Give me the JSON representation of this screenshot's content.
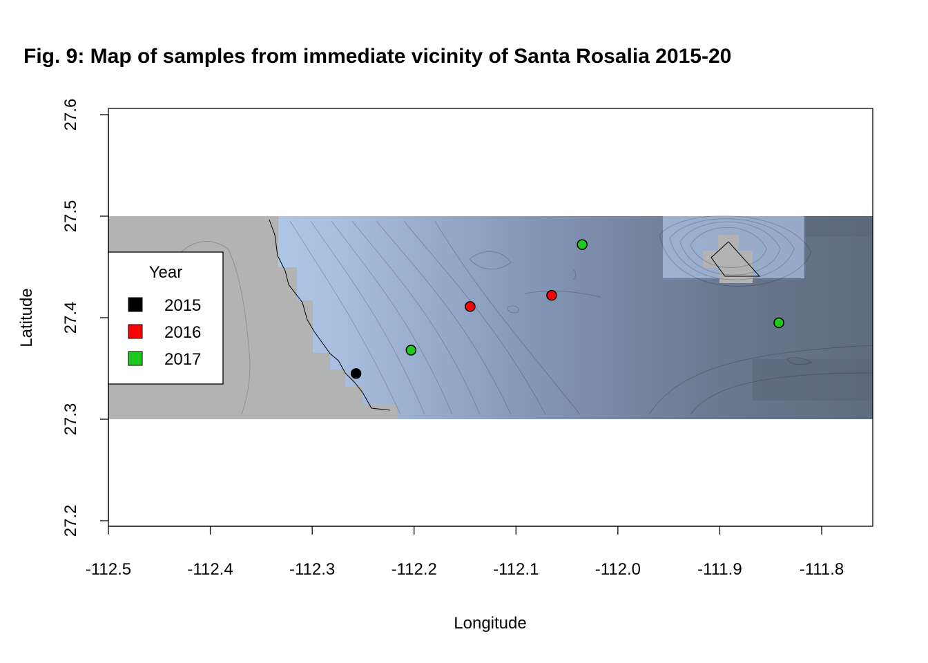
{
  "chart_data": {
    "type": "scatter",
    "title": "Fig. 9: Map of samples from immediate vicinity of Santa Rosalia 2015-20",
    "xlabel": "Longitude",
    "ylabel": "Latitude",
    "xlim": [
      -112.5,
      -111.75
    ],
    "ylim": [
      27.19,
      27.61
    ],
    "x_ticks": [
      -112.5,
      -112.4,
      -112.3,
      -112.2,
      -112.1,
      -112.0,
      -111.9,
      -111.8
    ],
    "x_tick_labels": [
      "-112.5",
      "-112.4",
      "-112.3",
      "-112.2",
      "-112.1",
      "-112.0",
      "-111.9",
      "-111.8"
    ],
    "y_ticks": [
      27.2,
      27.3,
      27.4,
      27.5,
      27.6
    ],
    "y_tick_labels": [
      "27.2",
      "27.3",
      "27.4",
      "27.5",
      "27.6"
    ],
    "grid": false,
    "background_raster": {
      "description": "bathymetry raster with contour lines; land shown in grey",
      "extent_x": [
        -112.5,
        -111.75
      ],
      "extent_y": [
        27.3,
        27.5
      ],
      "land_color": "#b3b3b3",
      "shallow_color": "#bcd6fb",
      "deep_color": "#5f6b7f"
    },
    "legend": {
      "title": "Year",
      "position": "left",
      "entries": [
        {
          "label": "2015",
          "color": "#000000"
        },
        {
          "label": "2016",
          "color": "#ff0000"
        },
        {
          "label": "2017",
          "color": "#1ec81e"
        }
      ]
    },
    "series": [
      {
        "name": "2015",
        "color": "#000000",
        "points": [
          {
            "x": -112.257,
            "y": 27.345
          }
        ]
      },
      {
        "name": "2016",
        "color": "#ff0000",
        "points": [
          {
            "x": -112.145,
            "y": 27.411
          },
          {
            "x": -112.065,
            "y": 27.422
          }
        ]
      },
      {
        "name": "2017",
        "color": "#1ec81e",
        "points": [
          {
            "x": -112.203,
            "y": 27.368
          },
          {
            "x": -112.035,
            "y": 27.472
          },
          {
            "x": -111.842,
            "y": 27.395
          }
        ]
      }
    ]
  }
}
